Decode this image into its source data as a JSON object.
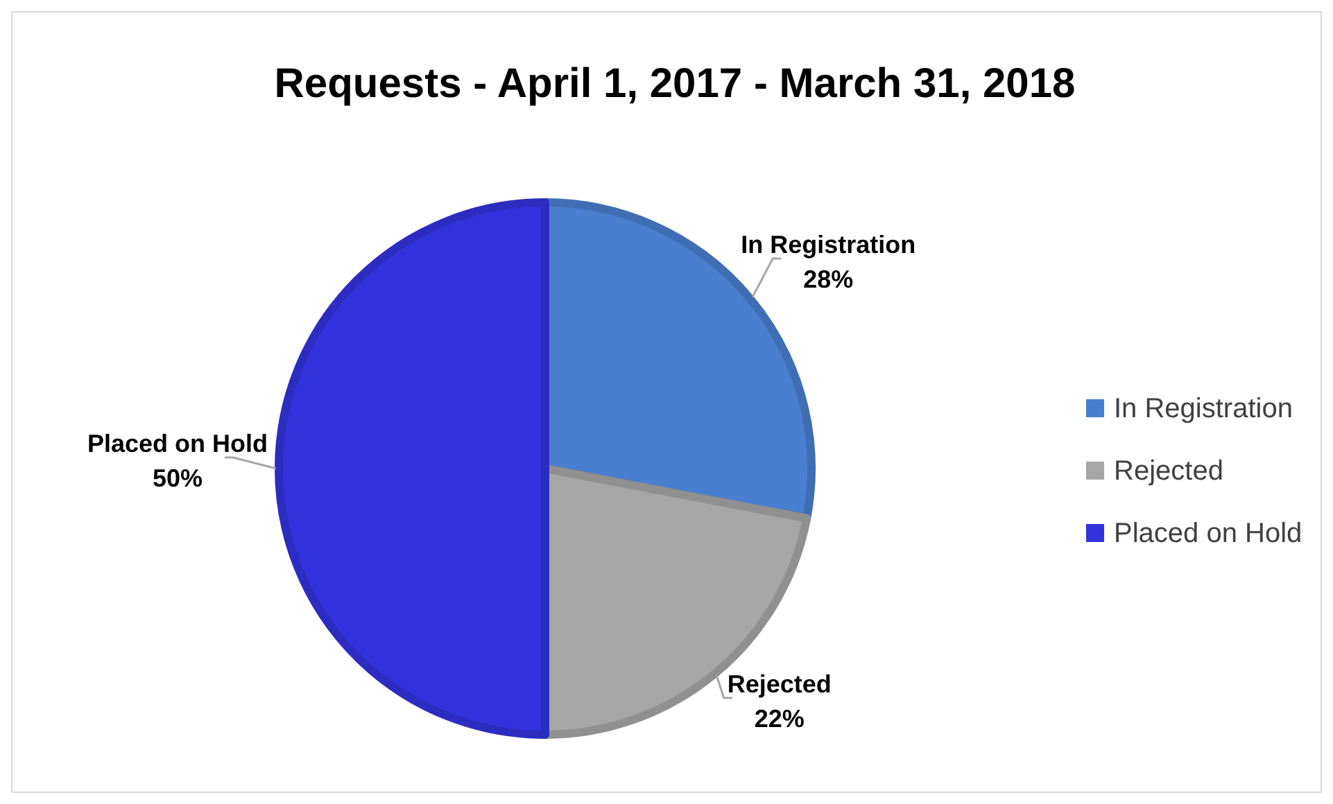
{
  "chart_data": {
    "type": "pie",
    "title": "Requests - April 1, 2017 - March 31, 2018",
    "categories": [
      "In Registration",
      "Rejected",
      "Placed on Hold"
    ],
    "values": [
      28,
      22,
      50
    ],
    "colors": [
      "#4a7fd0",
      "#a6a6a6",
      "#3333dd"
    ],
    "value_labels": [
      "28%",
      "22%",
      "50%"
    ],
    "legend": "right"
  }
}
